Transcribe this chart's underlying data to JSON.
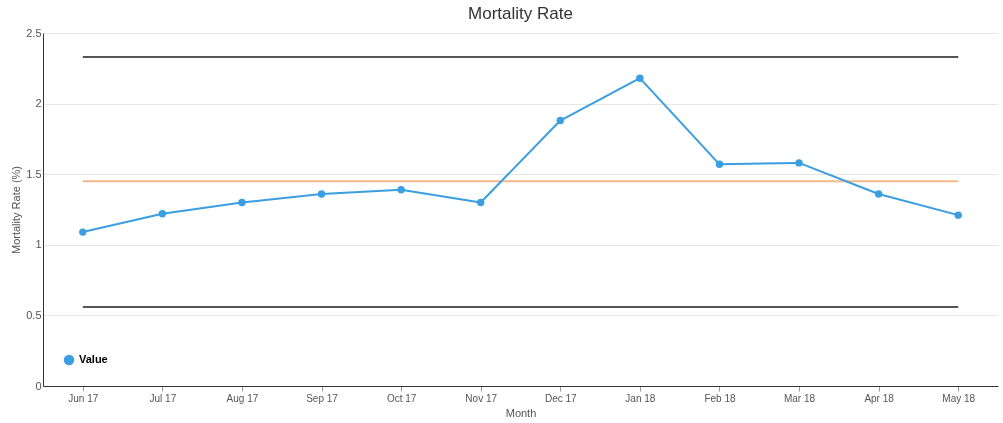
{
  "chart_data": {
    "type": "line",
    "title": "Mortality Rate",
    "xlabel": "Month",
    "ylabel": "Mortality Rate (%)",
    "categories": [
      "Jun 17",
      "Jul 17",
      "Aug 17",
      "Sep 17",
      "Oct 17",
      "Nov 17",
      "Dec 17",
      "Jan 18",
      "Feb 18",
      "Mar 18",
      "Apr 18",
      "May 18"
    ],
    "series": [
      {
        "name": "Value",
        "color": "#3a9ee0",
        "values": [
          1.09,
          1.22,
          1.3,
          1.36,
          1.39,
          1.3,
          1.88,
          2.18,
          1.57,
          1.58,
          1.36,
          1.21
        ]
      }
    ],
    "ref_lines": [
      {
        "axis": "y",
        "value": 2.33,
        "color": "#555555"
      },
      {
        "axis": "y",
        "value": 1.45,
        "color": "#f5b98a"
      },
      {
        "axis": "y",
        "value": 0.56,
        "color": "#555555"
      }
    ],
    "ylim": [
      0,
      2.5
    ],
    "yticks": [
      0,
      0.5,
      1,
      1.5,
      2,
      2.5
    ],
    "grid": "y",
    "legend": "bottom left",
    "marker": "circle",
    "line_style": "solid"
  }
}
